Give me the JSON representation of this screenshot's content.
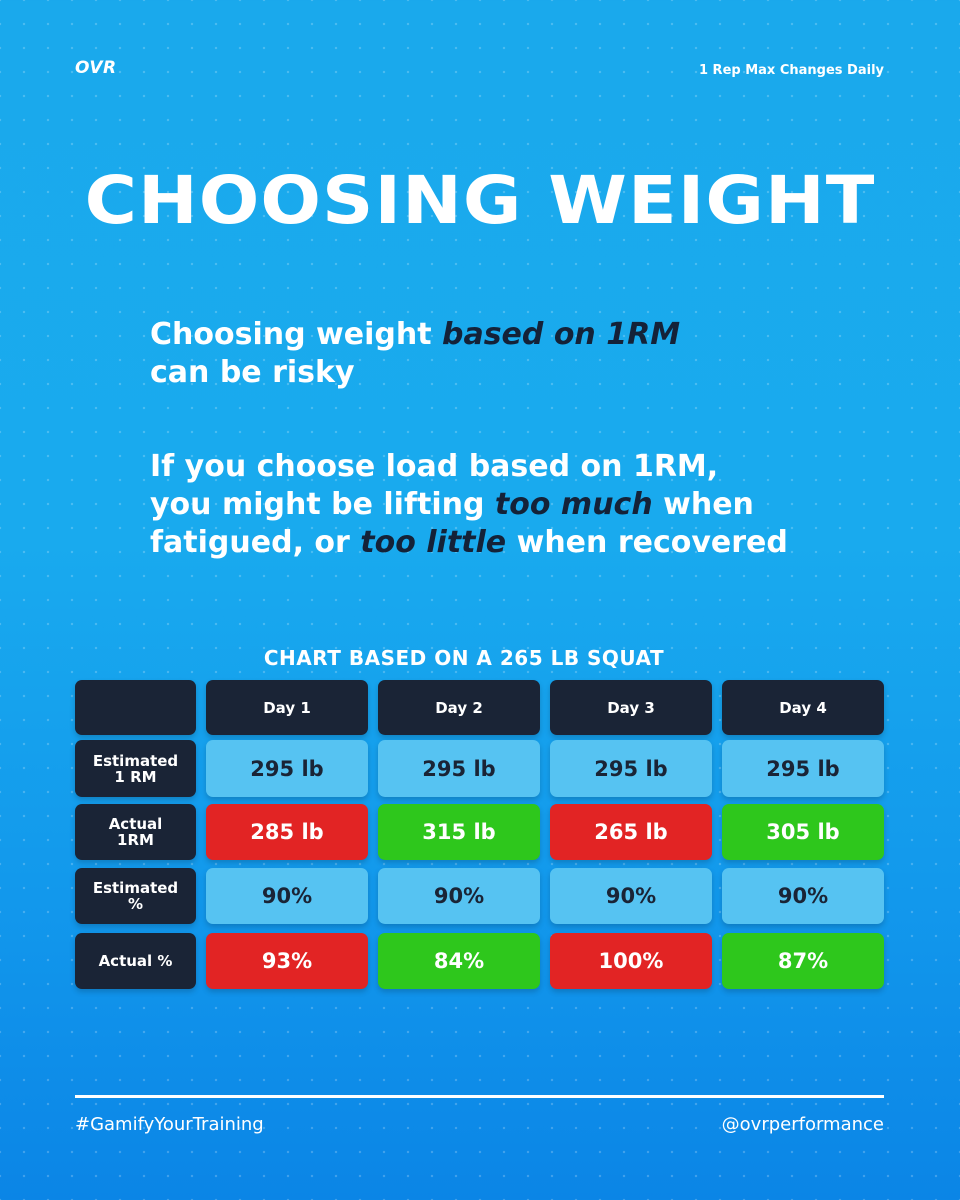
{
  "brand": "OVR",
  "tagline": "1 Rep Max Changes Daily",
  "title": "CHOOSING WEIGHT",
  "paragraph1": {
    "line1_prefix": "Choosing weight ",
    "line1_emphasis": "based on 1RM",
    "line2": "can be risky"
  },
  "paragraph2": {
    "line1": "If you choose load based on 1RM,",
    "line2_prefix": "you  might be lifting ",
    "line2_emphasis": "too much",
    "line2_suffix": " when",
    "line3_prefix": "fatigued, or ",
    "line3_emphasis": "too little",
    "line3_suffix": " when recovered"
  },
  "chart_data": {
    "type": "table",
    "title": "CHART BASED ON A 265 LB SQUAT",
    "columns": [
      "Day 1",
      "Day 2",
      "Day 3",
      "Day 4"
    ],
    "rows": [
      {
        "label_lines": [
          "Estimated",
          "1 RM"
        ],
        "kind": "est",
        "cells": [
          "295 lb",
          "295 lb",
          "295 lb",
          "295 lb"
        ]
      },
      {
        "label_lines": [
          "Actual",
          "1RM"
        ],
        "kind": "status",
        "cells": [
          "285 lb",
          "315 lb",
          "265 lb",
          "305 lb"
        ],
        "status": [
          "red",
          "green",
          "red",
          "green"
        ]
      },
      {
        "label_lines": [
          "Estimated",
          "%"
        ],
        "kind": "est",
        "cells": [
          "90%",
          "90%",
          "90%",
          "90%"
        ]
      },
      {
        "label_lines": [
          "Actual %"
        ],
        "kind": "status",
        "cells": [
          "93%",
          "84%",
          "100%",
          "87%"
        ],
        "status": [
          "red",
          "green",
          "red",
          "green"
        ]
      }
    ],
    "colors": {
      "header": "#1a2436",
      "estimated": "#56c3f2",
      "red": "#e22424",
      "green": "#2ec71c"
    }
  },
  "footer": {
    "hashtag": "#GamifyYourTraining",
    "handle": "@ovrperformance"
  }
}
